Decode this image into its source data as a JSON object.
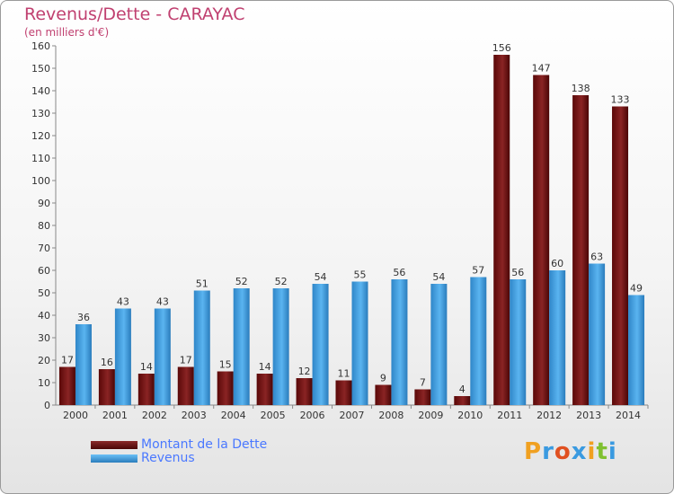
{
  "header": {
    "title": "Revenus/Dette - CARAYAC",
    "subtitle": "(en milliers d'€)"
  },
  "chart_data": {
    "type": "bar",
    "title": "Revenus/Dette - CARAYAC",
    "subtitle": "(en milliers d'€)",
    "xlabel": "",
    "ylabel": "",
    "ylim": [
      0,
      160
    ],
    "ytick_step": 10,
    "grid": false,
    "legend_position": "bottom-left",
    "categories": [
      "2000",
      "2001",
      "2002",
      "2003",
      "2004",
      "2005",
      "2006",
      "2007",
      "2008",
      "2009",
      "2010",
      "2011",
      "2012",
      "2013",
      "2014"
    ],
    "series": [
      {
        "name": "Montant de la Dette",
        "color": "#7a1a1a",
        "values": [
          17,
          16,
          14,
          17,
          15,
          14,
          12,
          11,
          9,
          7,
          4,
          156,
          147,
          138,
          133
        ]
      },
      {
        "name": "Revenus",
        "color": "#3a9ae0",
        "values": [
          36,
          43,
          43,
          51,
          52,
          52,
          54,
          55,
          56,
          54,
          57,
          56,
          60,
          63,
          49
        ]
      }
    ]
  },
  "legend": {
    "items": [
      {
        "label": "Montant de la Dette",
        "color": "#6a0e0e"
      },
      {
        "label": "Revenus",
        "color": "#3a9ae0"
      }
    ]
  },
  "logo": {
    "letters": [
      "P",
      "r",
      "o",
      "x",
      "i",
      "t",
      "i"
    ],
    "colors": [
      "#f0a020",
      "#3a9ae0",
      "#e05020",
      "#3a9ae0",
      "#f0a020",
      "#80c030",
      "#3a9ae0"
    ]
  }
}
